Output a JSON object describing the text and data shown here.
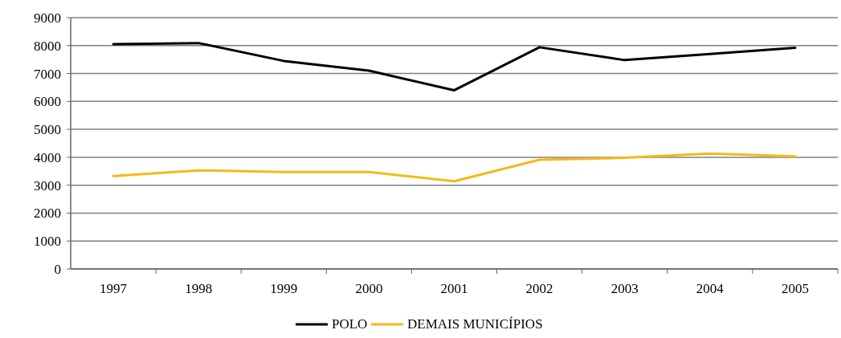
{
  "chart_data": {
    "type": "line",
    "categories": [
      "1997",
      "1998",
      "1999",
      "2000",
      "2001",
      "2002",
      "2003",
      "2004",
      "2005"
    ],
    "series": [
      {
        "name": "POLO",
        "color": "#000000",
        "values": [
          8050,
          8090,
          7450,
          7100,
          6400,
          7940,
          7480,
          7700,
          7920
        ]
      },
      {
        "name": "DEMAIS MUNICÍPIOS",
        "color": "#f4b919",
        "values": [
          3330,
          3530,
          3470,
          3470,
          3140,
          3910,
          3980,
          4130,
          4030
        ]
      }
    ],
    "ylim": [
      0,
      9000
    ],
    "yticks": [
      0,
      1000,
      2000,
      3000,
      4000,
      5000,
      6000,
      7000,
      8000,
      9000
    ],
    "grid": "y",
    "legend": "bottom",
    "marker": "none",
    "line_style": "solid"
  }
}
